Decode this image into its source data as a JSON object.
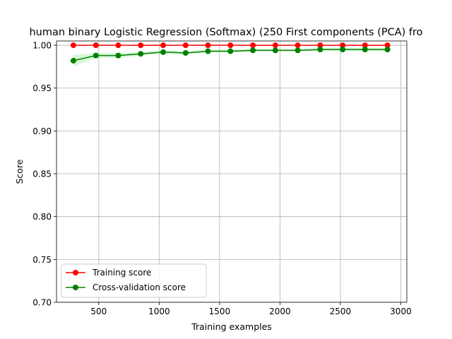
{
  "chart_data": {
    "type": "line",
    "title": "human binary Logistic Regression (Softmax) (250 First components (PCA) fro",
    "xlabel": "Training examples",
    "ylabel": "Score",
    "xlim": [
      150,
      3050
    ],
    "ylim": [
      0.7,
      1.005
    ],
    "xticks": [
      500,
      1000,
      1500,
      2000,
      2500,
      3000
    ],
    "xtick_labels": [
      "500",
      "1000",
      "1500",
      "2000",
      "2500",
      "3000"
    ],
    "yticks": [
      0.7,
      0.75,
      0.8,
      0.85,
      0.9,
      0.95,
      1.0
    ],
    "ytick_labels": [
      "0.70",
      "0.75",
      "0.80",
      "0.85",
      "0.90",
      "0.95",
      "1.00"
    ],
    "grid": true,
    "legend_position": "lower-left",
    "x": [
      290,
      476,
      661,
      847,
      1033,
      1219,
      1404,
      1590,
      1776,
      1962,
      2147,
      2333,
      2519,
      2704,
      2890
    ],
    "series": [
      {
        "name": "Training score",
        "color": "#ff0000",
        "values": [
          1.0,
          1.0,
          1.0,
          1.0,
          1.0,
          1.0,
          1.0,
          1.0,
          1.0,
          1.0,
          1.0,
          1.0,
          1.0,
          1.0,
          1.0
        ]
      },
      {
        "name": "Cross-validation score",
        "color": "#008000",
        "band_color": "#90ee90",
        "values": [
          0.982,
          0.988,
          0.988,
          0.99,
          0.992,
          0.991,
          0.993,
          0.993,
          0.994,
          0.994,
          0.994,
          0.995,
          0.995,
          0.995,
          0.995
        ],
        "band_lower": [
          0.975,
          0.985,
          0.985,
          0.988,
          0.99,
          0.989,
          0.992,
          0.991,
          0.993,
          0.993,
          0.993,
          0.993,
          0.993,
          0.993,
          0.993
        ],
        "band_upper": [
          0.989,
          0.991,
          0.991,
          0.992,
          0.994,
          0.993,
          0.995,
          0.995,
          0.996,
          0.996,
          0.996,
          0.997,
          0.997,
          0.997,
          0.997
        ]
      }
    ]
  }
}
